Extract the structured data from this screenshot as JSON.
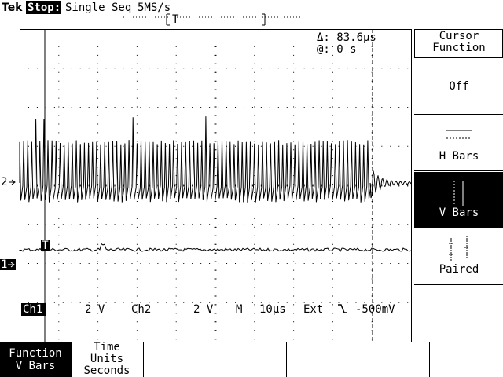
{
  "header": {
    "brand": "Tek",
    "state": "Stop:",
    "mode": "Single Seq",
    "sample_rate": "5MS/s"
  },
  "trigger_position": "T",
  "cursor_readout": {
    "delta": "Δ: 83.6µs",
    "at": "@: 0 s"
  },
  "channel_markers": [
    "2",
    "1"
  ],
  "trigger_marker": "T",
  "status_bar": {
    "ch1": "Ch1",
    "ch1_scale": "2 V",
    "ch2": "Ch2",
    "ch2_scale": "2 V",
    "timebase_label": "M",
    "timebase": "10µs",
    "trigger_source": "Ext",
    "trigger_level": "-500mV"
  },
  "side_menu": {
    "title": [
      "Cursor",
      "Function"
    ],
    "items": [
      "Off",
      "H Bars",
      "V Bars",
      "Paired"
    ]
  },
  "bottom_menu": [
    {
      "title": [
        "Function"
      ],
      "value": "V Bars"
    },
    {
      "title": [
        "Time",
        "Units"
      ],
      "value": "Seconds"
    }
  ]
}
